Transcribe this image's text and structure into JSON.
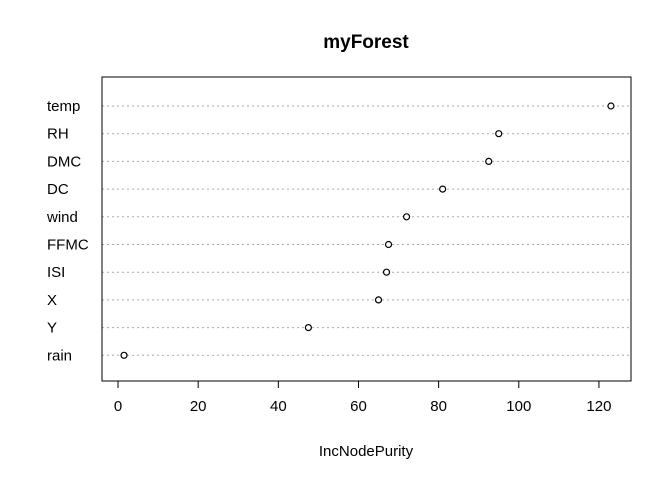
{
  "chart_data": {
    "type": "scatter",
    "title": "myForest",
    "xlabel": "IncNodePurity",
    "ylabel": "",
    "categories": [
      "temp",
      "RH",
      "DMC",
      "DC",
      "wind",
      "FFMC",
      "ISI",
      "X",
      "Y",
      "rain"
    ],
    "values": [
      123,
      95,
      92.5,
      81,
      72,
      67.5,
      67,
      65,
      47.5,
      1.5
    ],
    "xlim": [
      -4,
      128
    ],
    "xticks": [
      "0",
      "20",
      "40",
      "60",
      "80",
      "100",
      "120"
    ],
    "grid": "dotted horizontal lines per category"
  }
}
